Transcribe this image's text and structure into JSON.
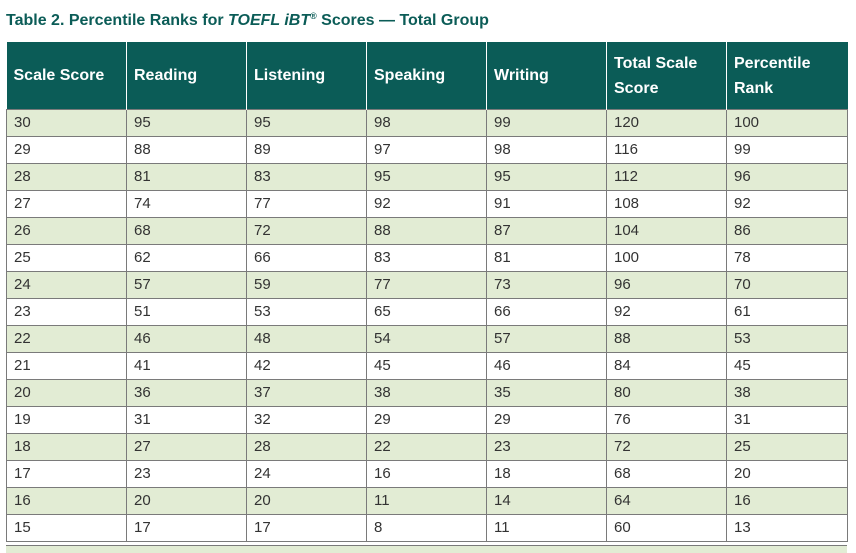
{
  "title": {
    "prefix": "Table 2. Percentile Ranks for ",
    "product": "TOEFL iBT",
    "mark": "®",
    "suffix": " Scores — Total Group"
  },
  "table": {
    "headers": [
      "Scale Score",
      "Reading",
      "Listening",
      "Speaking",
      "Writing",
      "Total Scale Score",
      "Percentile Rank"
    ],
    "rows": [
      [
        "30",
        "95",
        "95",
        "98",
        "99",
        "120",
        "100"
      ],
      [
        "29",
        "88",
        "89",
        "97",
        "98",
        "116",
        "99"
      ],
      [
        "28",
        "81",
        "83",
        "95",
        "95",
        "112",
        "96"
      ],
      [
        "27",
        "74",
        "77",
        "92",
        "91",
        "108",
        "92"
      ],
      [
        "26",
        "68",
        "72",
        "88",
        "87",
        "104",
        "86"
      ],
      [
        "25",
        "62",
        "66",
        "83",
        "81",
        "100",
        "78"
      ],
      [
        "24",
        "57",
        "59",
        "77",
        "73",
        "96",
        "70"
      ],
      [
        "23",
        "51",
        "53",
        "65",
        "66",
        "92",
        "61"
      ],
      [
        "22",
        "46",
        "48",
        "54",
        "57",
        "88",
        "53"
      ],
      [
        "21",
        "41",
        "42",
        "45",
        "46",
        "84",
        "45"
      ],
      [
        "20",
        "36",
        "37",
        "38",
        "35",
        "80",
        "38"
      ],
      [
        "19",
        "31",
        "32",
        "29",
        "29",
        "76",
        "31"
      ],
      [
        "18",
        "27",
        "28",
        "22",
        "23",
        "72",
        "25"
      ],
      [
        "17",
        "23",
        "24",
        "16",
        "18",
        "68",
        "20"
      ],
      [
        "16",
        "20",
        "20",
        "11",
        "14",
        "64",
        "16"
      ],
      [
        "15",
        "17",
        "17",
        "8",
        "11",
        "60",
        "13"
      ]
    ]
  },
  "colors": {
    "header_bg": "#0b5c57",
    "title_color": "#0b5c57",
    "stripe_bg": "#e2ecd4",
    "border": "#7a7a7a"
  }
}
